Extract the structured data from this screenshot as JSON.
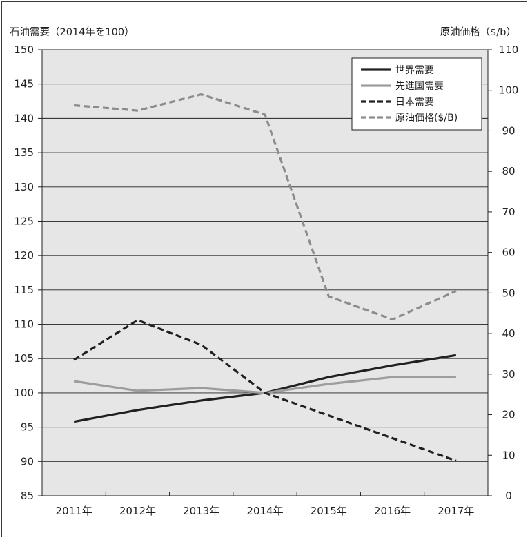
{
  "chart_data": {
    "type": "line",
    "left_axis_title": "石油需要（2014年を100）",
    "right_axis_title": "原油価格（$/b）",
    "categories": [
      "2011年",
      "2012年",
      "2013年",
      "2014年",
      "2015年",
      "2016年",
      "2017年"
    ],
    "y_left": {
      "min": 85,
      "max": 150,
      "step": 5
    },
    "y_right": {
      "min": 0,
      "max": 110,
      "step": 10
    },
    "grid": true,
    "background": "#e6e6e6",
    "legend_position": "top-right",
    "series": [
      {
        "name": "世界需要",
        "axis": "left",
        "style": "solid",
        "color": "#231f20",
        "values": [
          95.8,
          97.5,
          98.9,
          100.0,
          102.3,
          104.0,
          105.5
        ]
      },
      {
        "name": "先進国需要",
        "axis": "left",
        "style": "solid",
        "color": "#9d9d9d",
        "values": [
          101.7,
          100.3,
          100.7,
          100.0,
          101.3,
          102.3,
          102.3
        ]
      },
      {
        "name": "日本需要",
        "axis": "left",
        "style": "dashed",
        "color": "#231f20",
        "values": [
          104.8,
          110.6,
          107.0,
          100.0,
          96.7,
          93.4,
          90.1
        ]
      },
      {
        "name": "原油価格($/B)",
        "axis": "right",
        "style": "dashed",
        "color": "#8c8c8c",
        "values": [
          96.3,
          95.0,
          99.0,
          94.0,
          49.2,
          43.5,
          50.5
        ]
      }
    ]
  }
}
